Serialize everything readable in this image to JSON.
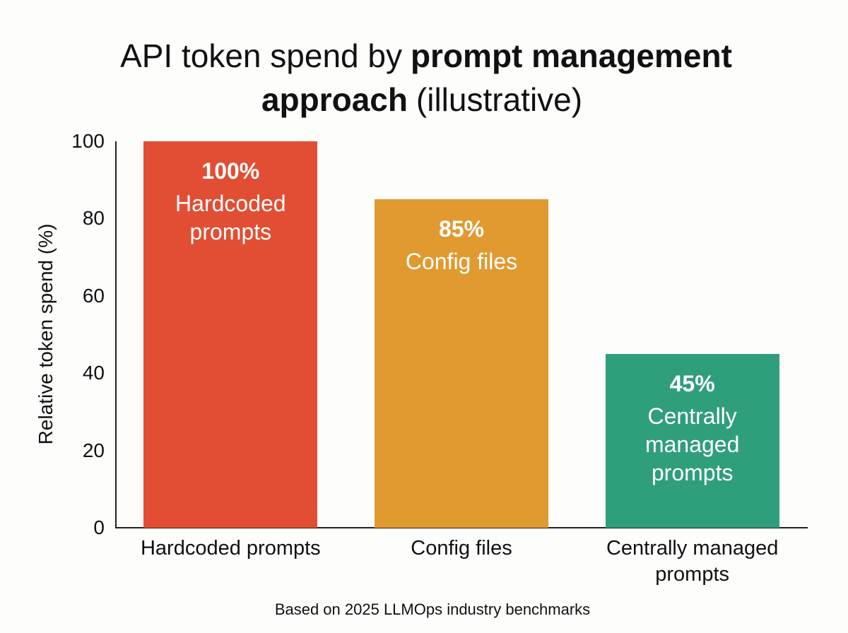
{
  "chart_data": {
    "type": "bar",
    "title": [
      {
        "text": "API token spend by",
        "bold": false
      },
      {
        "text": "prompt management approach",
        "bold": true
      },
      {
        "text": "(illustrative)",
        "bold": false
      }
    ],
    "y_label": "Relative token spend (%)",
    "categories": [
      "Hardcoded prompts",
      "Config files",
      "Centrally managed prompts"
    ],
    "values": [
      100,
      85,
      45
    ],
    "value_labels": [
      "100%",
      "85%",
      "45%"
    ],
    "colors": [
      "#e24e33",
      "#e09a30",
      "#2f9e7c"
    ],
    "ylim": [
      0,
      100
    ],
    "yticks": [
      0,
      20,
      40,
      60,
      80,
      100
    ],
    "grid": false,
    "footnote": "Based on 2025 LLMOps industry benchmarks"
  }
}
